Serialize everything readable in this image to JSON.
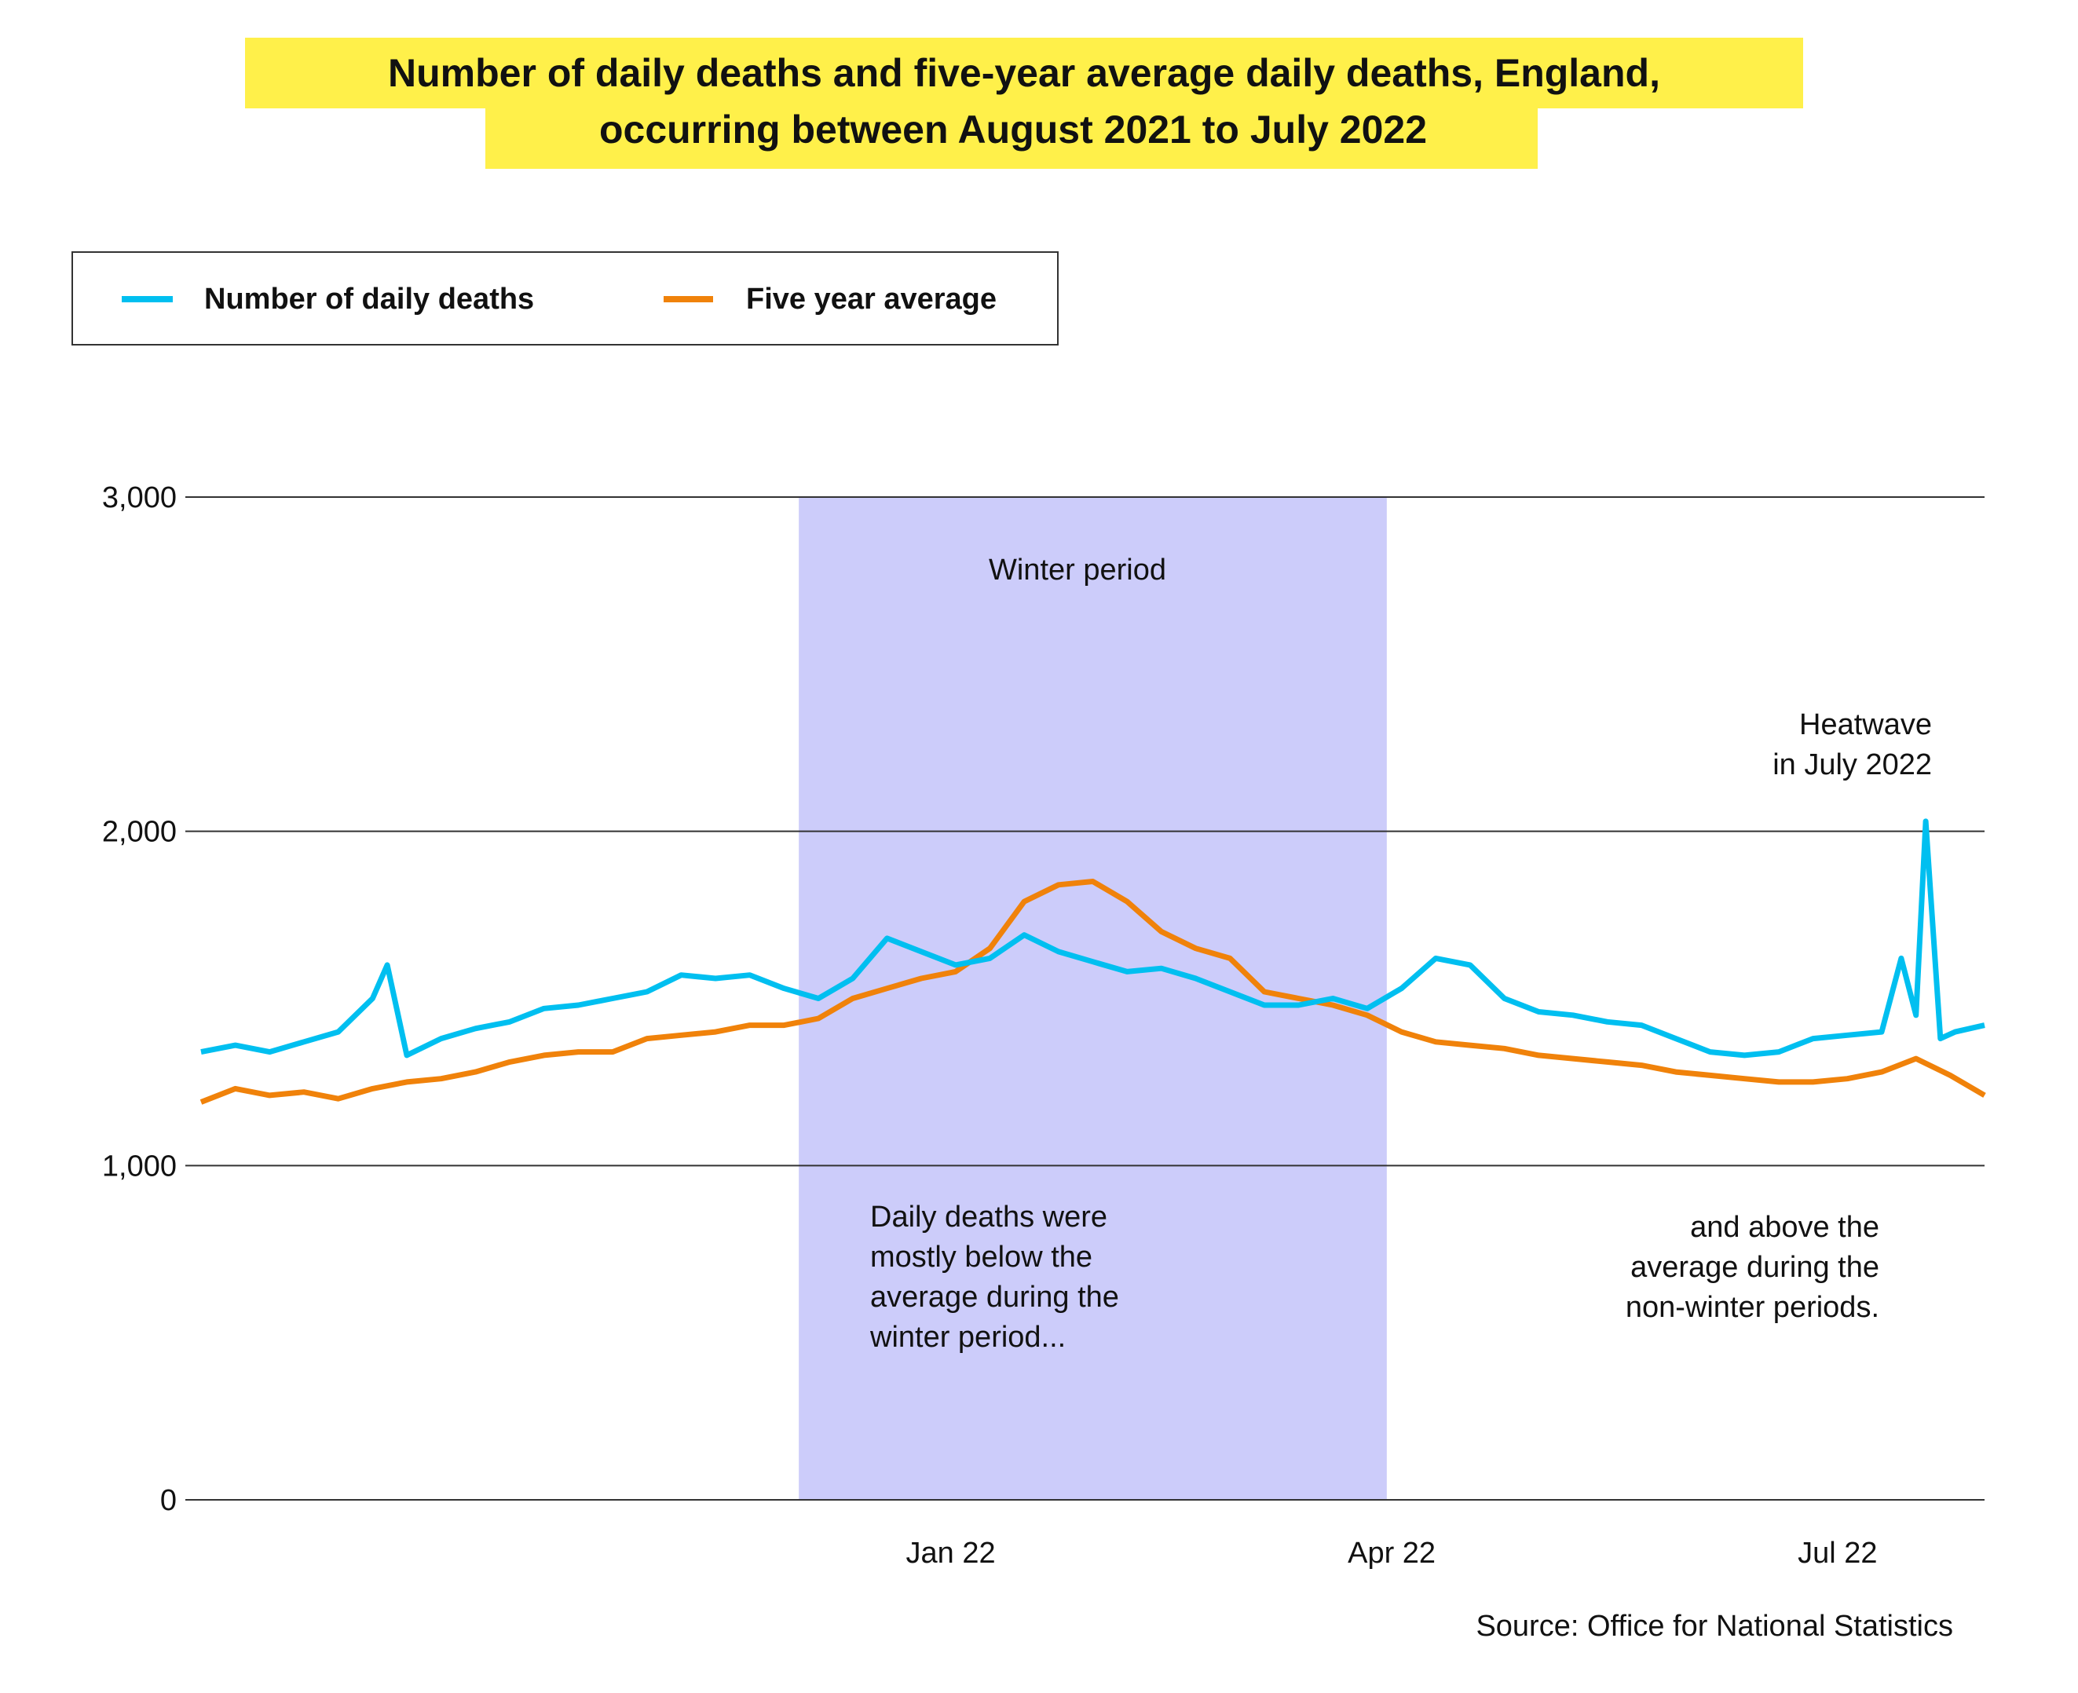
{
  "chart_data": {
    "type": "line",
    "title": [
      "Number of daily deaths and five-year average daily deaths, England,",
      "occurring between August 2021 to July 2022"
    ],
    "xlabel": "",
    "ylabel": "",
    "x_unit": "days since 1 Aug 2021",
    "xlim": [
      0,
      364
    ],
    "ylim": [
      0,
      3000
    ],
    "yticks": [
      0,
      1000,
      2000,
      3000
    ],
    "ytick_labels": [
      "0",
      "1,000",
      "2,000",
      "3,000"
    ],
    "xticks": [
      {
        "day": 153,
        "label": "Jan 22"
      },
      {
        "day": 243,
        "label": "Apr 22"
      },
      {
        "day": 334,
        "label": "Jul 22"
      }
    ],
    "grid": "horizontal",
    "legend_position": "top-left",
    "shaded_region": {
      "start_day": 122,
      "end_day": 242,
      "label": "Winter period",
      "color": "#ccccfa"
    },
    "series": [
      {
        "name": "Number of daily deaths",
        "color": "#00bff0",
        "x": [
          0,
          7,
          14,
          21,
          28,
          35,
          38,
          42,
          49,
          56,
          63,
          70,
          77,
          84,
          91,
          98,
          105,
          112,
          119,
          126,
          133,
          140,
          147,
          154,
          161,
          168,
          175,
          182,
          189,
          196,
          203,
          210,
          217,
          224,
          231,
          238,
          245,
          252,
          259,
          266,
          273,
          280,
          287,
          294,
          301,
          308,
          315,
          322,
          329,
          336,
          343,
          347,
          350,
          352,
          355,
          358,
          364
        ],
        "values": [
          1340,
          1360,
          1340,
          1370,
          1400,
          1500,
          1600,
          1330,
          1380,
          1410,
          1430,
          1470,
          1480,
          1500,
          1520,
          1570,
          1560,
          1570,
          1530,
          1500,
          1560,
          1680,
          1640,
          1600,
          1620,
          1690,
          1640,
          1610,
          1580,
          1590,
          1560,
          1520,
          1480,
          1480,
          1500,
          1470,
          1530,
          1620,
          1600,
          1500,
          1460,
          1450,
          1430,
          1420,
          1380,
          1340,
          1330,
          1340,
          1380,
          1390,
          1400,
          1620,
          1450,
          2030,
          1380,
          1400,
          1420
        ]
      },
      {
        "name": "Five year average",
        "color": "#f0820a",
        "x": [
          0,
          7,
          14,
          21,
          28,
          35,
          42,
          49,
          56,
          63,
          70,
          77,
          84,
          91,
          98,
          105,
          112,
          119,
          126,
          133,
          140,
          147,
          154,
          161,
          168,
          175,
          182,
          189,
          196,
          203,
          210,
          217,
          224,
          231,
          238,
          245,
          252,
          259,
          266,
          273,
          280,
          287,
          294,
          301,
          308,
          315,
          322,
          329,
          336,
          343,
          350,
          357,
          364
        ],
        "values": [
          1190,
          1230,
          1210,
          1220,
          1200,
          1230,
          1250,
          1260,
          1280,
          1310,
          1330,
          1340,
          1340,
          1380,
          1390,
          1400,
          1420,
          1420,
          1440,
          1500,
          1530,
          1560,
          1580,
          1650,
          1790,
          1840,
          1850,
          1790,
          1700,
          1650,
          1620,
          1520,
          1500,
          1480,
          1450,
          1400,
          1370,
          1360,
          1350,
          1330,
          1320,
          1310,
          1300,
          1280,
          1270,
          1260,
          1250,
          1250,
          1260,
          1280,
          1320,
          1270,
          1210
        ]
      }
    ],
    "annotations": {
      "winter_note": [
        "Daily deaths were",
        "mostly below the",
        "average during the",
        "winter period..."
      ],
      "non_winter_note": [
        "and above the",
        "average during the",
        "non-winter periods."
      ],
      "heatwave_note": [
        "Heatwave",
        "in July 2022"
      ]
    },
    "source": "Source: Office for National Statistics"
  },
  "colors": {
    "title_highlight": "#fff04a",
    "band": "#ccccfa"
  }
}
